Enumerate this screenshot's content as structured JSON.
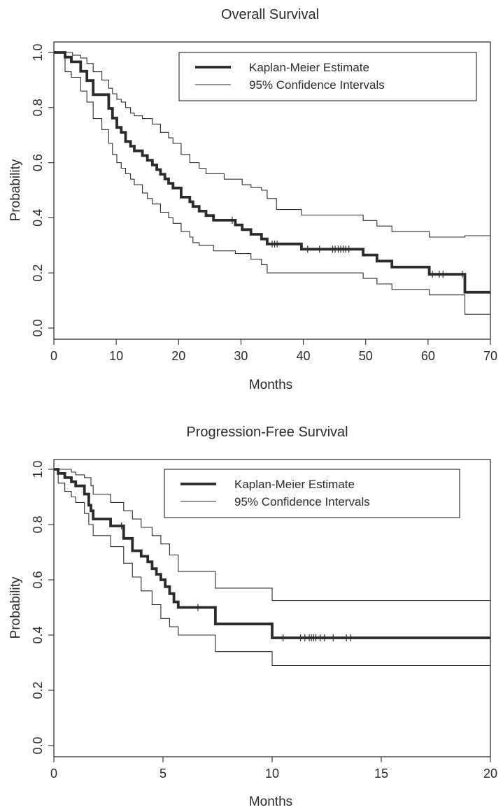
{
  "chart_data": [
    {
      "type": "line",
      "title": "Overall Survival",
      "xlabel": "Months",
      "ylabel": "Probability",
      "xlim": [
        0,
        70
      ],
      "ylim": [
        0,
        1
      ],
      "xticks": [
        "0",
        "10",
        "20",
        "30",
        "40",
        "50",
        "60",
        "70"
      ],
      "yticks": [
        "0.0",
        "0.2",
        "0.4",
        "0.6",
        "0.8",
        "1.0"
      ],
      "grid": false,
      "legend": {
        "position": "top-right",
        "entries": [
          "Kaplan-Meier Estimate",
          "95% Confidence Intervals"
        ]
      },
      "series": [
        {
          "name": "Kaplan-Meier Estimate",
          "x": [
            0,
            1.8,
            2.8,
            4.3,
            5.3,
            6.3,
            8.8,
            9.4,
            10.1,
            10.8,
            11.5,
            12.3,
            12.9,
            14.2,
            15.0,
            15.8,
            16.5,
            17.1,
            17.8,
            18.4,
            19.1,
            20.4,
            21.8,
            22.3,
            23.3,
            24.4,
            25.6,
            27.3,
            29.1,
            30.2,
            31.6,
            33.3,
            34.2,
            34.8,
            39.7,
            49.6,
            51.8,
            54.2,
            60.2,
            65.9,
            70
          ],
          "y": [
            1.0,
            0.983,
            0.966,
            0.932,
            0.898,
            0.847,
            0.797,
            0.762,
            0.728,
            0.71,
            0.677,
            0.66,
            0.643,
            0.626,
            0.609,
            0.592,
            0.575,
            0.558,
            0.541,
            0.525,
            0.508,
            0.475,
            0.458,
            0.441,
            0.424,
            0.408,
            0.391,
            0.391,
            0.374,
            0.357,
            0.34,
            0.323,
            0.305,
            0.305,
            0.286,
            0.265,
            0.243,
            0.221,
            0.195,
            0.13,
            0.13
          ]
        },
        {
          "name": "95% Confidence Intervals (upper)",
          "x": [
            0,
            2.0,
            3.0,
            4.3,
            5.3,
            6.3,
            7.7,
            8.8,
            9.4,
            10.1,
            10.8,
            11.5,
            12.3,
            12.9,
            14.2,
            15.8,
            17.1,
            18.4,
            19.1,
            20.4,
            21.8,
            23.3,
            24.4,
            27.3,
            30.2,
            31.6,
            33.3,
            34.2,
            35.7,
            39.7,
            49.6,
            51.8,
            54.2,
            60.2,
            65.9,
            70
          ],
          "y": [
            1.0,
            1.0,
            0.99,
            0.98,
            0.96,
            0.93,
            0.9,
            0.87,
            0.85,
            0.83,
            0.82,
            0.8,
            0.78,
            0.77,
            0.76,
            0.74,
            0.71,
            0.69,
            0.67,
            0.63,
            0.6,
            0.58,
            0.56,
            0.54,
            0.52,
            0.51,
            0.5,
            0.47,
            0.43,
            0.41,
            0.39,
            0.37,
            0.35,
            0.33,
            0.335,
            0.335
          ]
        },
        {
          "name": "95% Confidence Intervals (lower)",
          "x": [
            0,
            1.8,
            2.8,
            4.3,
            5.3,
            6.3,
            7.7,
            8.8,
            9.4,
            10.1,
            10.8,
            11.5,
            12.3,
            12.9,
            14.2,
            15.0,
            15.8,
            17.1,
            18.4,
            19.1,
            20.4,
            21.8,
            22.3,
            23.3,
            25.6,
            29.1,
            31.6,
            33.3,
            34.2,
            39.7,
            49.6,
            51.8,
            54.2,
            60.2,
            65.9,
            70
          ],
          "y": [
            1.0,
            0.93,
            0.91,
            0.86,
            0.82,
            0.76,
            0.72,
            0.67,
            0.63,
            0.6,
            0.58,
            0.56,
            0.54,
            0.52,
            0.49,
            0.47,
            0.45,
            0.42,
            0.4,
            0.38,
            0.35,
            0.33,
            0.31,
            0.3,
            0.28,
            0.27,
            0.25,
            0.23,
            0.2,
            0.2,
            0.18,
            0.16,
            0.14,
            0.12,
            0.05,
            0.05
          ]
        }
      ],
      "censor_marks": [
        {
          "x": 28.6,
          "y": 0.391
        },
        {
          "x": 35.0,
          "y": 0.305
        },
        {
          "x": 35.4,
          "y": 0.305
        },
        {
          "x": 35.8,
          "y": 0.305
        },
        {
          "x": 40.7,
          "y": 0.286
        },
        {
          "x": 42.6,
          "y": 0.286
        },
        {
          "x": 44.7,
          "y": 0.286
        },
        {
          "x": 45.1,
          "y": 0.286
        },
        {
          "x": 45.6,
          "y": 0.286
        },
        {
          "x": 46.0,
          "y": 0.286
        },
        {
          "x": 46.4,
          "y": 0.286
        },
        {
          "x": 46.8,
          "y": 0.286
        },
        {
          "x": 47.3,
          "y": 0.286
        },
        {
          "x": 60.7,
          "y": 0.195
        },
        {
          "x": 61.8,
          "y": 0.195
        },
        {
          "x": 62.4,
          "y": 0.195
        },
        {
          "x": 65.5,
          "y": 0.195
        }
      ]
    },
    {
      "type": "line",
      "title": "Progression-Free Survival",
      "xlabel": "Months",
      "ylabel": "Probability",
      "xlim": [
        0,
        20
      ],
      "ylim": [
        0,
        1
      ],
      "xticks": [
        "0",
        "5",
        "10",
        "15",
        "20"
      ],
      "yticks": [
        "0.0",
        "0.2",
        "0.4",
        "0.6",
        "0.8",
        "1.0"
      ],
      "grid": false,
      "legend": {
        "position": "top-right",
        "entries": [
          "Kaplan-Meier Estimate",
          "95% Confidence Intervals"
        ]
      },
      "series": [
        {
          "name": "Kaplan-Meier Estimate",
          "x": [
            0,
            0.2,
            0.5,
            0.8,
            1.0,
            1.4,
            1.6,
            1.7,
            1.8,
            2.6,
            3.2,
            3.6,
            4.0,
            4.3,
            4.5,
            4.7,
            4.9,
            5.1,
            5.3,
            5.5,
            5.7,
            7.4,
            10.0,
            20
          ],
          "y": [
            1.0,
            0.985,
            0.97,
            0.955,
            0.94,
            0.91,
            0.87,
            0.85,
            0.82,
            0.795,
            0.75,
            0.705,
            0.685,
            0.665,
            0.64,
            0.62,
            0.6,
            0.575,
            0.55,
            0.52,
            0.5,
            0.44,
            0.39,
            0.39
          ]
        },
        {
          "name": "95% Confidence Intervals (upper)",
          "x": [
            0,
            0.8,
            1.0,
            1.4,
            1.7,
            1.8,
            2.6,
            3.2,
            3.6,
            4.0,
            4.5,
            4.9,
            5.3,
            5.7,
            7.4,
            10.0,
            20
          ],
          "y": [
            1.0,
            0.99,
            0.98,
            0.97,
            0.94,
            0.91,
            0.88,
            0.85,
            0.82,
            0.79,
            0.76,
            0.73,
            0.69,
            0.63,
            0.57,
            0.525,
            0.525
          ]
        },
        {
          "name": "95% Confidence Intervals (lower)",
          "x": [
            0,
            0.2,
            0.5,
            0.8,
            1.0,
            1.4,
            1.6,
            1.8,
            2.6,
            3.2,
            3.6,
            4.0,
            4.5,
            4.9,
            5.3,
            5.7,
            7.4,
            10.0,
            20
          ],
          "y": [
            1.0,
            0.95,
            0.92,
            0.9,
            0.88,
            0.84,
            0.8,
            0.76,
            0.72,
            0.66,
            0.61,
            0.56,
            0.51,
            0.46,
            0.43,
            0.4,
            0.34,
            0.29,
            0.29
          ]
        }
      ],
      "censor_marks": [
        {
          "x": 3.1,
          "y": 0.795
        },
        {
          "x": 6.6,
          "y": 0.5
        },
        {
          "x": 10.5,
          "y": 0.39
        },
        {
          "x": 11.3,
          "y": 0.39
        },
        {
          "x": 11.5,
          "y": 0.39
        },
        {
          "x": 11.7,
          "y": 0.39
        },
        {
          "x": 11.8,
          "y": 0.39
        },
        {
          "x": 11.9,
          "y": 0.39
        },
        {
          "x": 12.0,
          "y": 0.39
        },
        {
          "x": 12.2,
          "y": 0.39
        },
        {
          "x": 12.4,
          "y": 0.39
        },
        {
          "x": 12.8,
          "y": 0.39
        },
        {
          "x": 13.4,
          "y": 0.39
        },
        {
          "x": 13.6,
          "y": 0.39
        }
      ]
    }
  ]
}
